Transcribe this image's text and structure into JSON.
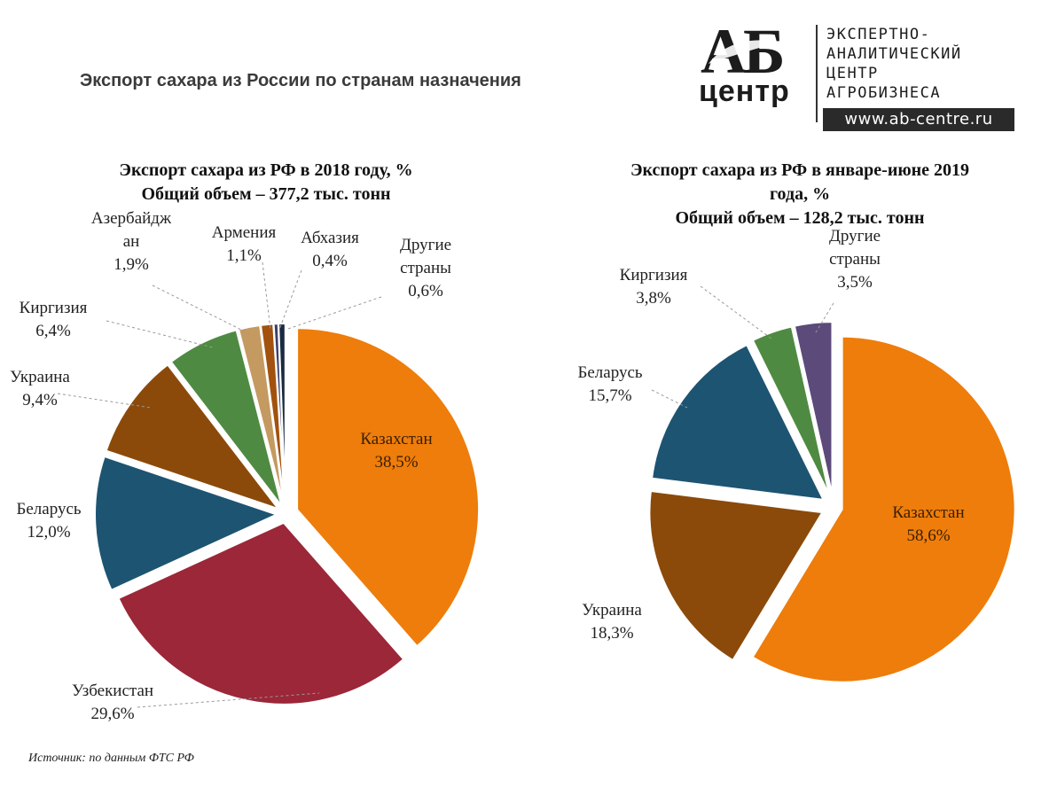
{
  "page": {
    "title": "Экспорт сахара из России по странам назначения",
    "source": "Источник: по данным ФТС РФ"
  },
  "logo": {
    "letters": "АБ",
    "word": "центр",
    "lines": [
      "ЭКСПЕРТНО-",
      "АНАЛИТИЧЕСКИЙ",
      "ЦЕНТР",
      "АГРОБИЗНЕСА"
    ],
    "url": "www.ab-centre.ru"
  },
  "chart_data": [
    {
      "type": "pie",
      "title": [
        "Экспорт сахара из РФ в 2018 году, %",
        "Общий объем – 377,2 тыс. тонн"
      ],
      "slices": [
        {
          "label": [
            "Казахстан"
          ],
          "value": 38.5,
          "value_label": "38,5%",
          "color": "#EE7D0B"
        },
        {
          "label": [
            "Узбекистан"
          ],
          "value": 29.6,
          "value_label": "29,6%",
          "color": "#9B2739"
        },
        {
          "label": [
            "Беларусь"
          ],
          "value": 12.0,
          "value_label": "12,0%",
          "color": "#1D5472"
        },
        {
          "label": [
            "Украина"
          ],
          "value": 9.4,
          "value_label": "9,4%",
          "color": "#8B4A0A"
        },
        {
          "label": [
            "Киргизия"
          ],
          "value": 6.4,
          "value_label": "6,4%",
          "color": "#4F8A42"
        },
        {
          "label": [
            "Азербайдж",
            "ан"
          ],
          "value": 1.9,
          "value_label": "1,9%",
          "color": "#C49A60"
        },
        {
          "label": [
            "Армения"
          ],
          "value": 1.1,
          "value_label": "1,1%",
          "color": "#A2520E"
        },
        {
          "label": [
            "Абхазия"
          ],
          "value": 0.4,
          "value_label": "0,4%",
          "color": "#3B3F6E"
        },
        {
          "label": [
            "Другие",
            "страны"
          ],
          "value": 0.6,
          "value_label": "0,6%",
          "color": "#1A2A40"
        }
      ]
    },
    {
      "type": "pie",
      "title": [
        "Экспорт сахара из РФ в январе-июне 2019",
        "года, %",
        "Общий объем – 128,2 тыс. тонн"
      ],
      "slices": [
        {
          "label": [
            "Казахстан"
          ],
          "value": 58.6,
          "value_label": "58,6%",
          "color": "#EE7D0B"
        },
        {
          "label": [
            "Украина"
          ],
          "value": 18.3,
          "value_label": "18,3%",
          "color": "#8B4A0A"
        },
        {
          "label": [
            "Беларусь"
          ],
          "value": 15.7,
          "value_label": "15,7%",
          "color": "#1D5472"
        },
        {
          "label": [
            "Киргизия"
          ],
          "value": 3.8,
          "value_label": "3,8%",
          "color": "#4F8A42"
        },
        {
          "label": [
            "Другие",
            "страны"
          ],
          "value": 3.5,
          "value_label": "3,5%",
          "color": "#5C4A7A"
        }
      ]
    }
  ]
}
